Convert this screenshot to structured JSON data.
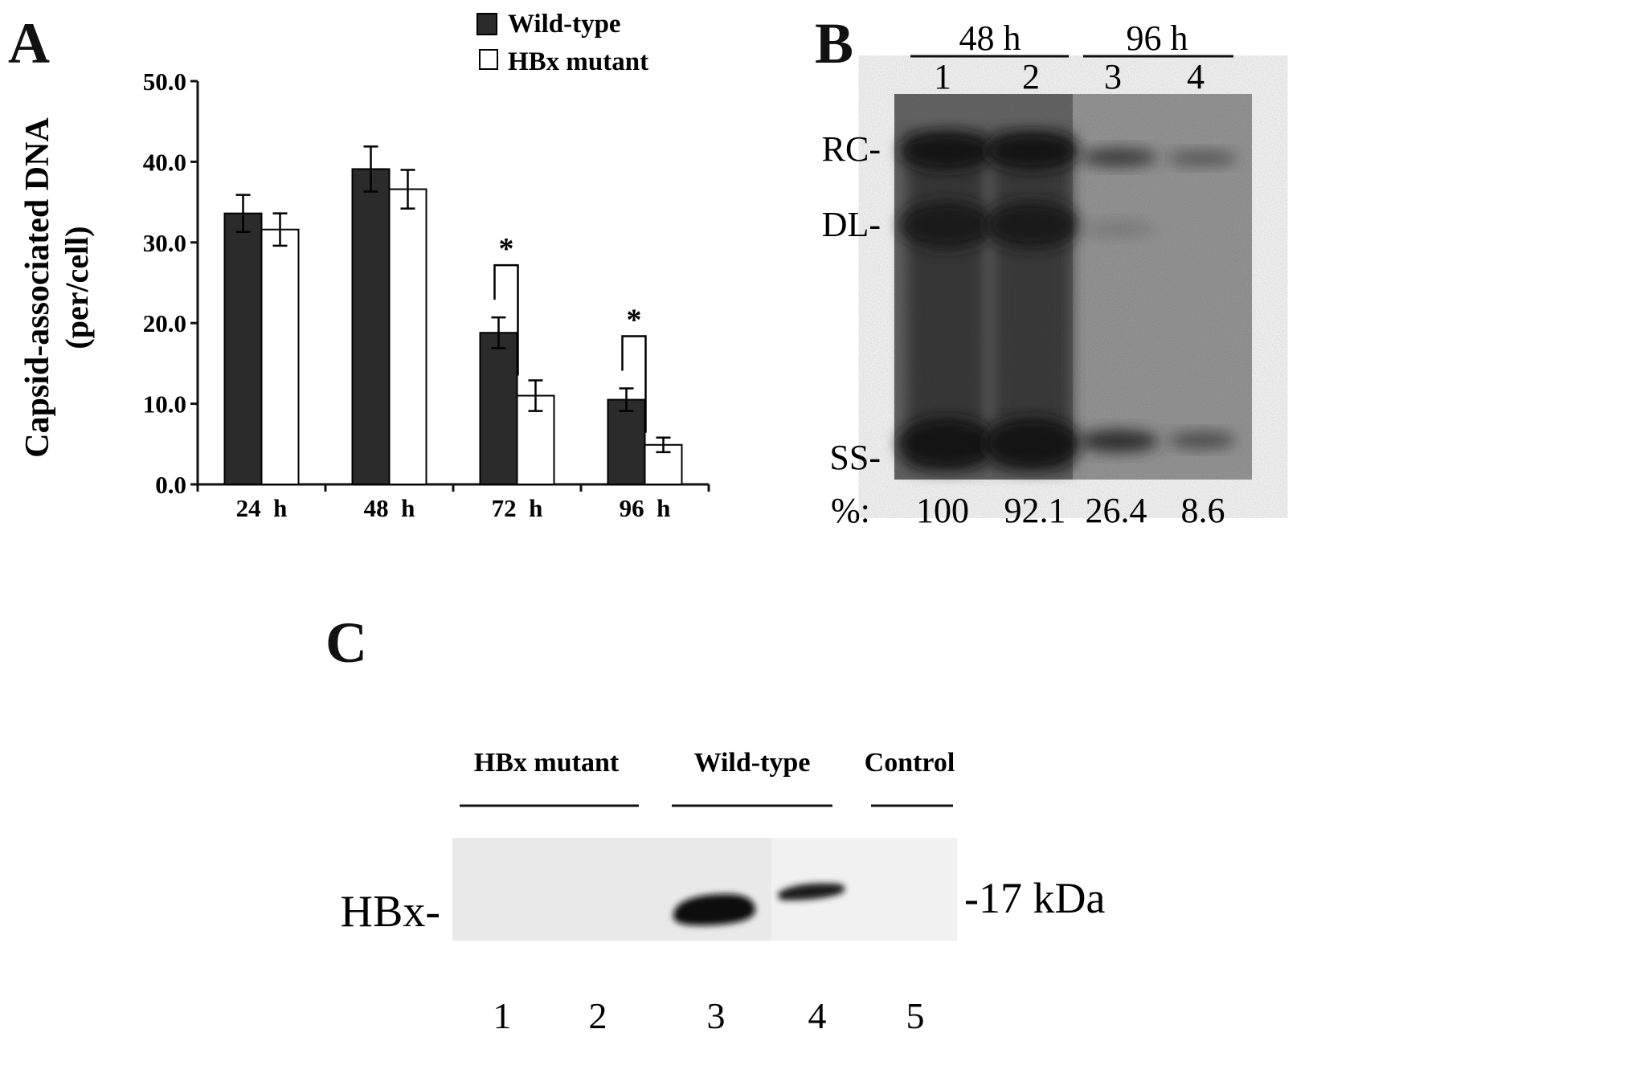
{
  "panel_a": {
    "letter": "A",
    "legend": [
      {
        "label": "Wild-type",
        "color": "#2b2b2b"
      },
      {
        "label": "HBx mutant",
        "color": "#ffffff"
      }
    ],
    "ylabel_line1": "Capsid-associated DNA",
    "ylabel_line2": "(per/cell)",
    "significance_mark": "*"
  },
  "chart_data": {
    "type": "bar",
    "categories": [
      "24  h",
      "48  h",
      "72  h",
      "96  h"
    ],
    "series": [
      {
        "name": "Wild-type",
        "values": [
          33.6,
          39.1,
          18.8,
          10.5
        ],
        "errors": [
          2.3,
          2.8,
          1.9,
          1.4
        ],
        "color": "#2b2b2b"
      },
      {
        "name": "HBx mutant",
        "values": [
          31.6,
          36.6,
          11.0,
          4.9
        ],
        "errors": [
          2.0,
          2.4,
          1.9,
          0.9
        ],
        "color": "#ffffff"
      }
    ],
    "ylim": [
      0,
      50
    ],
    "yticks": [
      "0.0",
      "10.0",
      "20.0",
      "30.0",
      "40.0",
      "50.0"
    ],
    "significant": [
      false,
      false,
      true,
      true
    ],
    "ylabel": "Capsid-associated DNA (per/cell)",
    "legend_position": "top"
  },
  "panel_b": {
    "letter": "B",
    "groups": [
      "48 h",
      "96 h"
    ],
    "lanes": [
      "1",
      "2",
      "3",
      "4"
    ],
    "bands": [
      "RC-",
      "DL-",
      "SS-"
    ],
    "percent_label": "%:",
    "percents": [
      "100",
      "92.1",
      "26.4",
      "8.6"
    ]
  },
  "panel_c": {
    "letter": "C",
    "groups": [
      "HBx mutant",
      "Wild-type",
      "Control"
    ],
    "band_label": "HBx-",
    "marker": "-17 kDa",
    "lanes": [
      "1",
      "2",
      "3",
      "4",
      "5"
    ]
  }
}
